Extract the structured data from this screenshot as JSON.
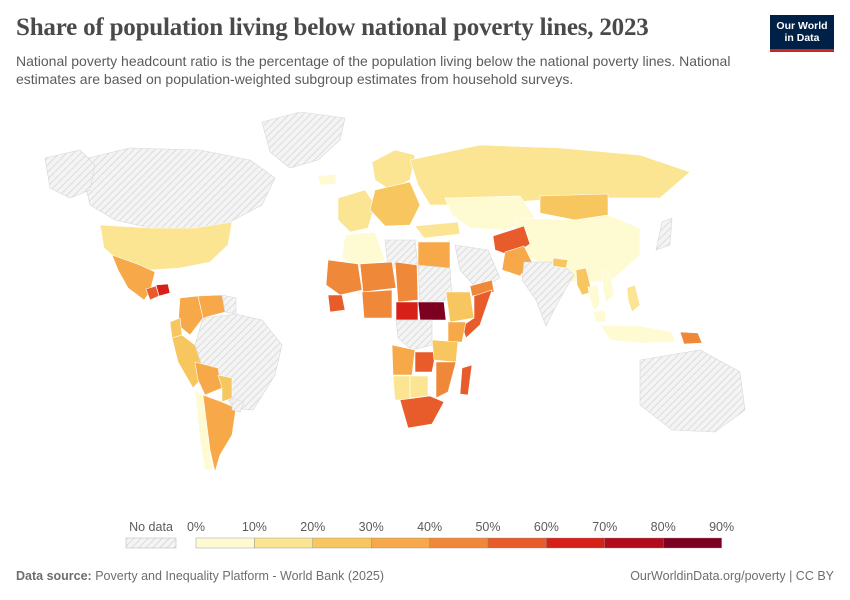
{
  "header": {
    "title": "Share of population living below national poverty lines, 2023",
    "subtitle": "National poverty headcount ratio is the percentage of the population living below the national poverty lines. National estimates are based on population-weighted subgroup estimates from household surveys.",
    "logo_line1": "Our World",
    "logo_line2": "in Data"
  },
  "colors": {
    "bins": [
      "#fefbd2",
      "#fbe593",
      "#f7c65f",
      "#f7a848",
      "#f08839",
      "#e85c2c",
      "#d62018",
      "#b30b1b",
      "#7e0021"
    ],
    "no_data": "#eaeaea",
    "hatch": "#d2d2d2",
    "border": "#ffffff"
  },
  "legend": {
    "no_data_label": "No data",
    "ticks": [
      "0%",
      "10%",
      "20%",
      "30%",
      "40%",
      "50%",
      "60%",
      "70%",
      "80%",
      "90%"
    ]
  },
  "footer": {
    "source_label": "Data source:",
    "source_text": "Poverty and Inequality Platform - World Bank (2025)",
    "url": "OurWorldinData.org/poverty | CC BY"
  },
  "map_data": {
    "unit": "% of population",
    "regions": [
      {
        "name": "Canada",
        "value": null
      },
      {
        "name": "Greenland",
        "value": null
      },
      {
        "name": "Alaska",
        "value": null
      },
      {
        "name": "United States",
        "value": 12
      },
      {
        "name": "Mexico",
        "value": 36
      },
      {
        "name": "Guatemala",
        "value": 56
      },
      {
        "name": "Honduras",
        "value": 62
      },
      {
        "name": "Colombia",
        "value": 37
      },
      {
        "name": "Venezuela",
        "value": 36
      },
      {
        "name": "Guyana",
        "value": null
      },
      {
        "name": "Ecuador",
        "value": 27
      },
      {
        "name": "Peru",
        "value": 28
      },
      {
        "name": "Brazil",
        "value": null
      },
      {
        "name": "Bolivia",
        "value": 36
      },
      {
        "name": "Paraguay",
        "value": 22
      },
      {
        "name": "Chile",
        "value": 7
      },
      {
        "name": "Argentina",
        "value": 38
      },
      {
        "name": "Uruguay",
        "value": null
      },
      {
        "name": "Iceland",
        "value": 9
      },
      {
        "name": "Western Europe",
        "value": 16
      },
      {
        "name": "Scandinavia",
        "value": 14
      },
      {
        "name": "Eastern Europe",
        "value": 20
      },
      {
        "name": "Russia",
        "value": 12
      },
      {
        "name": "Kazakhstan",
        "value": 8
      },
      {
        "name": "Turkey",
        "value": 15
      },
      {
        "name": "Mongolia",
        "value": 27
      },
      {
        "name": "China",
        "value": 1
      },
      {
        "name": "Afghanistan",
        "value": 55
      },
      {
        "name": "Pakistan",
        "value": 30
      },
      {
        "name": "India",
        "value": null
      },
      {
        "name": "Nepal",
        "value": 25
      },
      {
        "name": "Myanmar",
        "value": 25
      },
      {
        "name": "Thailand",
        "value": 8
      },
      {
        "name": "Vietnam",
        "value": 5
      },
      {
        "name": "Malaysia",
        "value": 7
      },
      {
        "name": "Indonesia",
        "value": 9
      },
      {
        "name": "Philippines",
        "value": 16
      },
      {
        "name": "Papua New Guinea",
        "value": 40
      },
      {
        "name": "Japan",
        "value": null
      },
      {
        "name": "Australia",
        "value": null
      },
      {
        "name": "Algeria",
        "value": 5
      },
      {
        "name": "Libya",
        "value": null
      },
      {
        "name": "Egypt",
        "value": 30
      },
      {
        "name": "Saudi Arabia",
        "value": null
      },
      {
        "name": "Yemen",
        "value": 48
      },
      {
        "name": "Mali",
        "value": 42
      },
      {
        "name": "Niger",
        "value": 41
      },
      {
        "name": "Chad",
        "value": 42
      },
      {
        "name": "Sudan",
        "value": null
      },
      {
        "name": "Nigeria",
        "value": 40
      },
      {
        "name": "Sierra Leone",
        "value": 57
      },
      {
        "name": "Central African Republic",
        "value": 69
      },
      {
        "name": "South Sudan",
        "value": 82
      },
      {
        "name": "Ethiopia",
        "value": 24
      },
      {
        "name": "Somalia",
        "value": 54
      },
      {
        "name": "Kenya",
        "value": 36
      },
      {
        "name": "DR Congo",
        "value": null
      },
      {
        "name": "Angola",
        "value": 32
      },
      {
        "name": "Zambia",
        "value": 54
      },
      {
        "name": "Tanzania",
        "value": 26
      },
      {
        "name": "Mozambique",
        "value": 46
      },
      {
        "name": "Madagascar",
        "value": 52
      },
      {
        "name": "Namibia",
        "value": 17
      },
      {
        "name": "Botswana",
        "value": 16
      },
      {
        "name": "South Africa",
        "value": 56
      }
    ]
  }
}
